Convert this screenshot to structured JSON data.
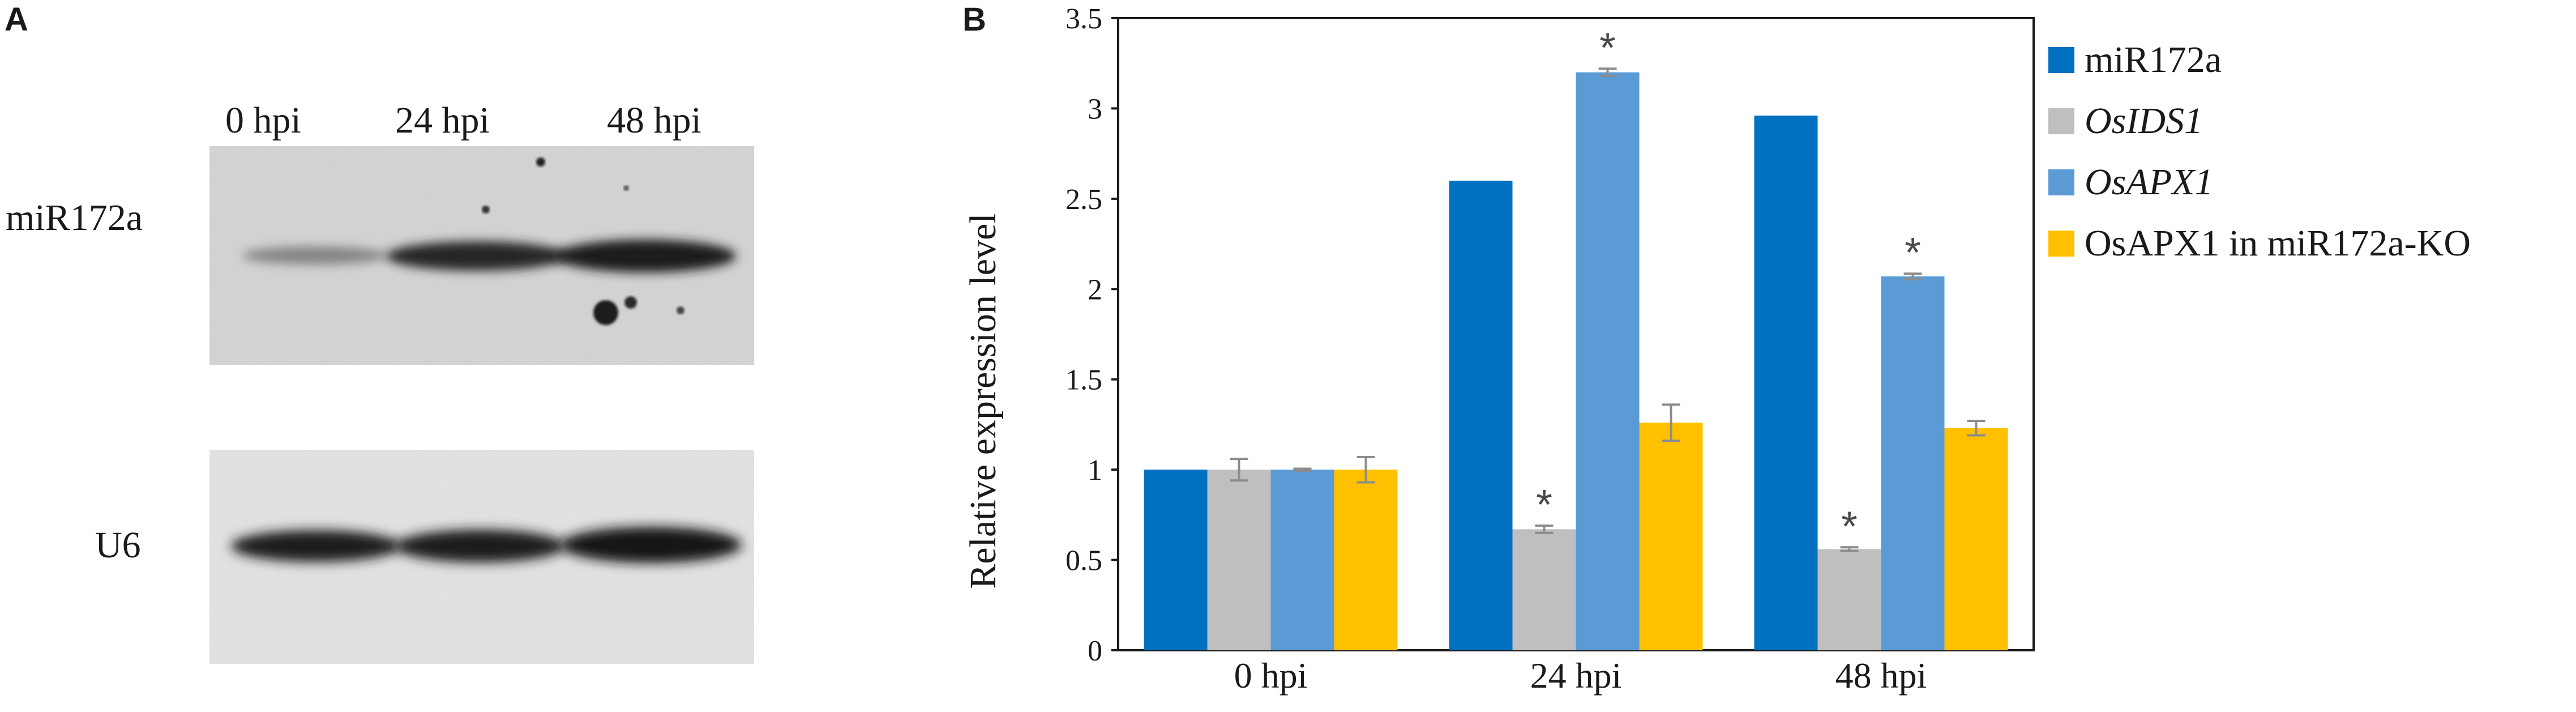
{
  "panels": {
    "a_letter": "A",
    "b_letter": "B"
  },
  "blot": {
    "lanes": [
      "0 hpi",
      "24 hpi",
      "48 hpi"
    ],
    "rows": [
      "miR172a",
      "U6"
    ]
  },
  "colors": {
    "miR172a": "#0070c0",
    "OsIDS1": "#bfbfbf",
    "OsAPX1": "#5b9bd5",
    "OsAPX1_KO": "#ffc000",
    "error": "#8c8c8c",
    "axis": "#1a1a1a"
  },
  "chart_data": {
    "type": "bar",
    "title": "",
    "xlabel": "",
    "ylabel": "Relative expression level",
    "ylim": [
      0,
      3.5
    ],
    "yticks": [
      0,
      0.5,
      1,
      1.5,
      2,
      2.5,
      3,
      3.5
    ],
    "ytick_labels": [
      "0",
      "0.5",
      "1",
      "1.5",
      "2",
      "2.5",
      "3",
      "3.5"
    ],
    "categories": [
      "0 hpi",
      "24 hpi",
      "48 hpi"
    ],
    "legend_position": "right",
    "series": [
      {
        "name": "miR172a",
        "italic": false,
        "color": "#0070c0",
        "values": [
          1.0,
          2.6,
          2.96
        ],
        "errors": [
          0,
          0,
          0
        ],
        "significant": [
          false,
          false,
          false
        ]
      },
      {
        "name": "OsIDS1",
        "italic": true,
        "color": "#bfbfbf",
        "values": [
          1.0,
          0.67,
          0.56
        ],
        "errors": [
          0.06,
          0.02,
          0.01
        ],
        "significant": [
          false,
          true,
          true
        ]
      },
      {
        "name": "OsAPX1",
        "italic": true,
        "color": "#5b9bd5",
        "values": [
          1.0,
          3.2,
          2.07
        ],
        "errors": [
          0.005,
          0.02,
          0.015
        ],
        "significant": [
          false,
          true,
          true
        ]
      },
      {
        "name": "OsAPX1 in miR172a-KO",
        "italic": false,
        "color": "#ffc000",
        "values": [
          1.0,
          1.26,
          1.23
        ],
        "errors": [
          0.07,
          0.1,
          0.04
        ],
        "significant": [
          false,
          false,
          false
        ]
      }
    ],
    "significance_marker": "*"
  }
}
